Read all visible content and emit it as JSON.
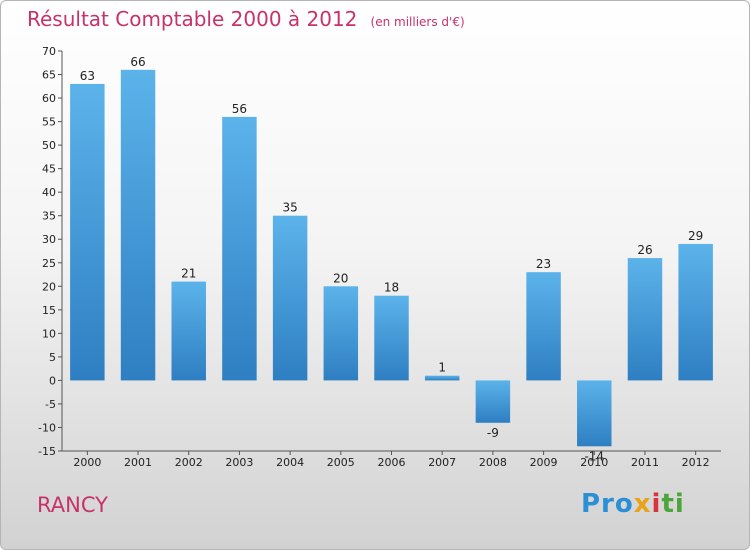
{
  "header": {
    "title": "Résultat Comptable 2000 à 2012",
    "subtitle": "(en milliers d'€)"
  },
  "footer": {
    "town": "RANCY",
    "logo": [
      "Pro",
      "x",
      "i",
      "ti"
    ]
  },
  "colors": {
    "title": "#c8326a",
    "bar_top": "#5cb3ea",
    "bar_bottom": "#2e7fc2"
  },
  "chart_data": {
    "type": "bar",
    "categories": [
      "2000",
      "2001",
      "2002",
      "2003",
      "2004",
      "2005",
      "2006",
      "2007",
      "2008",
      "2009",
      "2010",
      "2011",
      "2012"
    ],
    "values": [
      63,
      66,
      21,
      56,
      35,
      20,
      18,
      1,
      -9,
      23,
      -14,
      26,
      29
    ],
    "title": "Résultat Comptable 2000 à 2012",
    "ylim": [
      -15,
      70
    ],
    "yticks": [
      -15,
      -10,
      -5,
      0,
      5,
      10,
      15,
      20,
      25,
      30,
      35,
      40,
      45,
      50,
      55,
      60,
      65,
      70
    ],
    "grid": false,
    "legend": "none"
  }
}
